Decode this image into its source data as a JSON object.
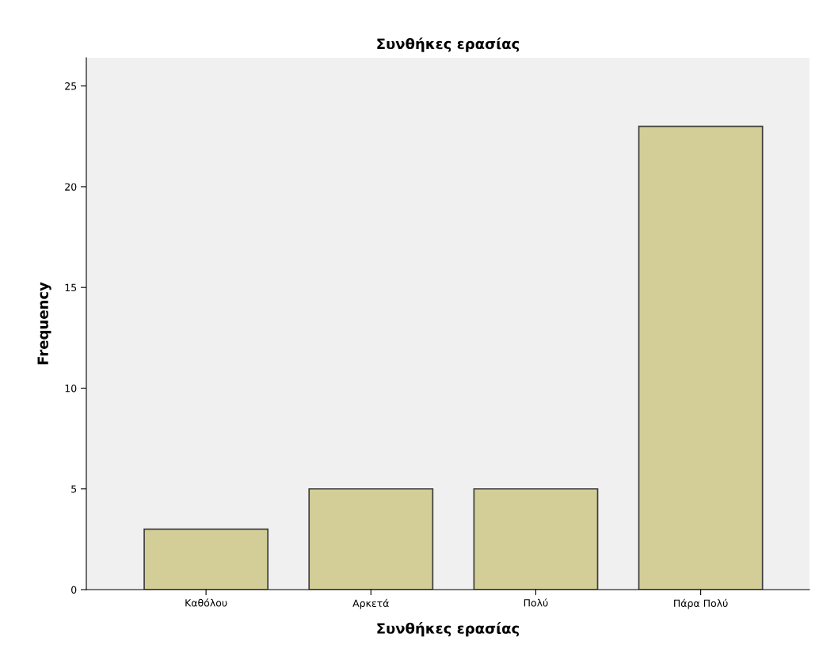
{
  "chart_data": {
    "type": "bar",
    "title": "Συνθήκες ερασίας",
    "xlabel": "Συνθήκες ερασίας",
    "ylabel": "Frequency",
    "categories": [
      "Καθόλου",
      "Αρκετά",
      "Πολύ",
      "Πάρα Πολύ"
    ],
    "values": [
      3,
      5,
      5,
      23
    ],
    "color": "#d3ce97",
    "ylim": [
      0,
      26.4
    ],
    "yticks": [
      0,
      5,
      10,
      15,
      20,
      25
    ],
    "grid": false,
    "legend": false
  }
}
